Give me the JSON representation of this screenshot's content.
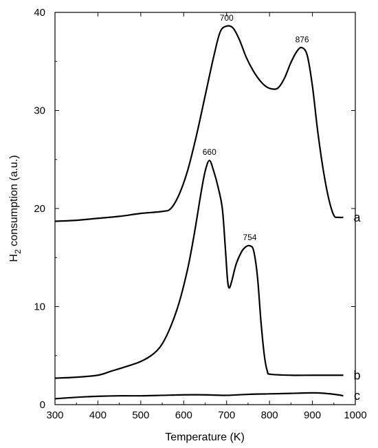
{
  "chart_data": {
    "type": "line",
    "xlabel": "Temperature (K)",
    "ylabel": {
      "prefix": "H",
      "sub": "2",
      "suffix": " consumption (a.u.)"
    },
    "xlim": [
      300,
      1000
    ],
    "ylim": [
      0,
      40
    ],
    "xticks": [
      "300",
      "400",
      "500",
      "600",
      "700",
      "800",
      "900",
      "1000"
    ],
    "yticks": [
      "0",
      "10",
      "20",
      "30",
      "40"
    ],
    "grid": false,
    "legend": "none",
    "series": [
      {
        "name": "a",
        "color": "#000000",
        "points": [
          [
            300,
            18.7
          ],
          [
            350,
            18.8
          ],
          [
            400,
            19.0
          ],
          [
            450,
            19.2
          ],
          [
            500,
            19.5
          ],
          [
            550,
            19.7
          ],
          [
            570,
            20.0
          ],
          [
            590,
            21.5
          ],
          [
            610,
            24.0
          ],
          [
            630,
            27.5
          ],
          [
            650,
            31.5
          ],
          [
            670,
            35.5
          ],
          [
            685,
            38.0
          ],
          [
            700,
            38.6
          ],
          [
            715,
            38.4
          ],
          [
            730,
            37.2
          ],
          [
            745,
            35.5
          ],
          [
            760,
            34.2
          ],
          [
            775,
            33.2
          ],
          [
            790,
            32.5
          ],
          [
            805,
            32.2
          ],
          [
            820,
            32.3
          ],
          [
            835,
            33.3
          ],
          [
            850,
            34.9
          ],
          [
            865,
            36.1
          ],
          [
            876,
            36.4
          ],
          [
            888,
            35.6
          ],
          [
            900,
            32.5
          ],
          [
            912,
            28.0
          ],
          [
            925,
            24.0
          ],
          [
            938,
            21.0
          ],
          [
            950,
            19.3
          ],
          [
            960,
            19.1
          ],
          [
            972,
            19.1
          ]
        ]
      },
      {
        "name": "b",
        "color": "#000000",
        "points": [
          [
            300,
            2.7
          ],
          [
            350,
            2.8
          ],
          [
            400,
            3.0
          ],
          [
            430,
            3.4
          ],
          [
            460,
            3.8
          ],
          [
            500,
            4.4
          ],
          [
            530,
            5.2
          ],
          [
            550,
            6.2
          ],
          [
            570,
            8.0
          ],
          [
            590,
            10.5
          ],
          [
            610,
            14.0
          ],
          [
            625,
            17.5
          ],
          [
            640,
            21.5
          ],
          [
            650,
            23.8
          ],
          [
            660,
            24.9
          ],
          [
            670,
            23.8
          ],
          [
            680,
            22.2
          ],
          [
            690,
            20.0
          ],
          [
            697,
            16.0
          ],
          [
            702,
            12.8
          ],
          [
            706,
            11.9
          ],
          [
            712,
            12.6
          ],
          [
            722,
            14.3
          ],
          [
            735,
            15.6
          ],
          [
            745,
            16.1
          ],
          [
            754,
            16.2
          ],
          [
            763,
            15.7
          ],
          [
            772,
            13.0
          ],
          [
            780,
            8.5
          ],
          [
            788,
            5.0
          ],
          [
            795,
            3.4
          ],
          [
            802,
            3.1
          ],
          [
            850,
            3.0
          ],
          [
            900,
            3.0
          ],
          [
            972,
            3.0
          ]
        ]
      },
      {
        "name": "c",
        "color": "#000000",
        "points": [
          [
            300,
            0.6
          ],
          [
            350,
            0.75
          ],
          [
            400,
            0.85
          ],
          [
            450,
            0.9
          ],
          [
            500,
            0.9
          ],
          [
            550,
            0.95
          ],
          [
            600,
            1.0
          ],
          [
            650,
            1.0
          ],
          [
            700,
            0.95
          ],
          [
            750,
            1.05
          ],
          [
            800,
            1.1
          ],
          [
            850,
            1.15
          ],
          [
            900,
            1.2
          ],
          [
            930,
            1.15
          ],
          [
            960,
            1.0
          ],
          [
            972,
            0.9
          ]
        ]
      }
    ],
    "annotations": [
      {
        "text": "700",
        "x": 700,
        "y": 38.6
      },
      {
        "text": "876",
        "x": 876,
        "y": 36.4
      },
      {
        "text": "660",
        "x": 660,
        "y": 24.9
      },
      {
        "text": "754",
        "x": 754,
        "y": 16.2
      }
    ]
  }
}
